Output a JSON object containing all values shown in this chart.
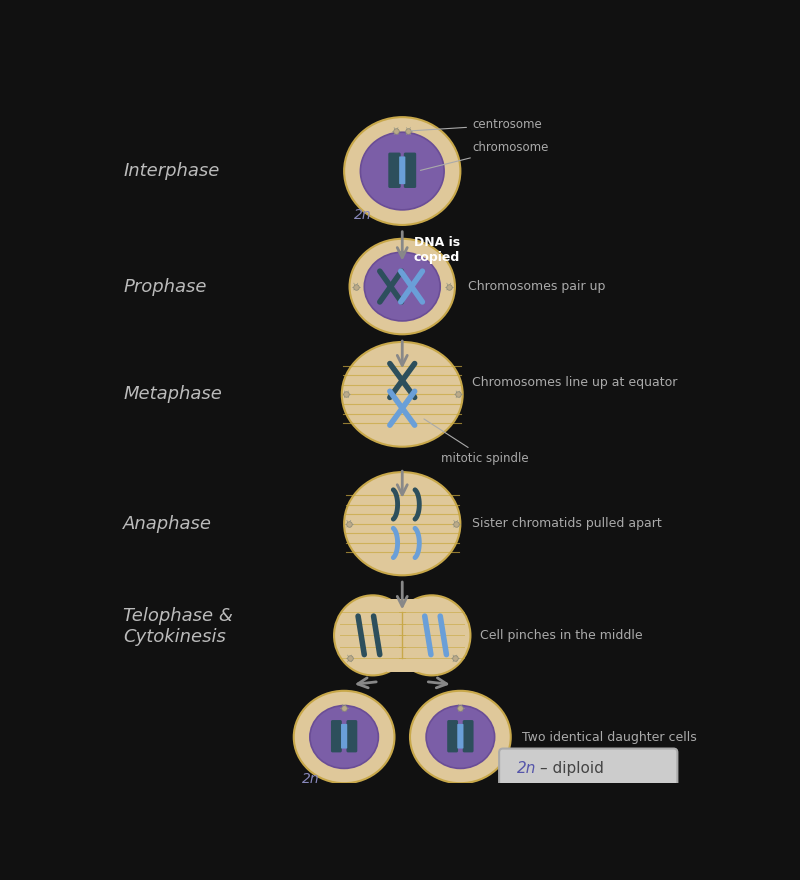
{
  "bg_color": "#111111",
  "cell_color": "#dfc89a",
  "cell_edge_color": "#c8a84a",
  "nucleus_color": "#7b5ea7",
  "nucleus_edge_color": "#6a4d96",
  "chrom_dark": "#2d4f5c",
  "chrom_light": "#6a9fd8",
  "spindle_color": "#c8a840",
  "text_color": "#aaaaaa",
  "label_color": "#bbbbbb",
  "arrow_color": "#888888",
  "centrosome_color": "#bbaa88",
  "phase_labels": [
    "Interphase",
    "Prophase",
    "Metaphase",
    "Anaphase",
    "Telophase &\nCytokinesis"
  ],
  "descriptions": [
    "Chromosomes pair up",
    "Chromosomes line up at equator",
    "Sister chromatids pulled apart",
    "Cell pinches in the middle",
    "Two identical daughter cells"
  ],
  "dna_label": "DNA is\ncopied",
  "centrosome_label": "centrosome",
  "chromosome_label": "chromosome",
  "mitotic_spindle_label": "mitotic spindle",
  "diploid_label": "2n – diploid",
  "2n_label": "2n"
}
